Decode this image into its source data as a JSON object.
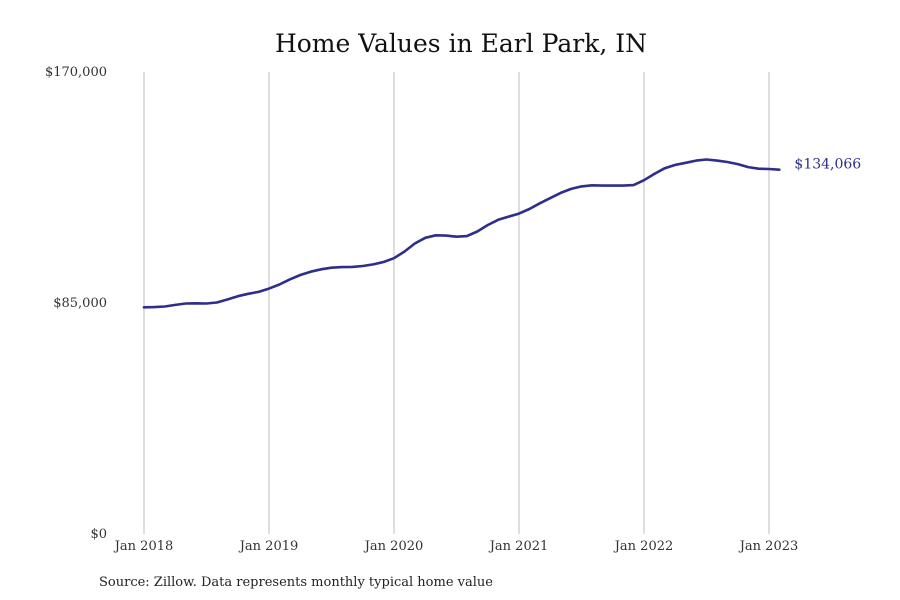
{
  "chart_data": {
    "type": "line",
    "title": "Home Values in Earl Park, IN",
    "xlabel": "",
    "ylabel": "",
    "y_ticks": [
      {
        "value": 0,
        "label": "$0"
      },
      {
        "value": 85000,
        "label": "$85,000"
      },
      {
        "value": 170000,
        "label": "$170,000"
      }
    ],
    "ylim": [
      0,
      170000
    ],
    "x_ticks": [
      {
        "value": "2018-01",
        "label": "Jan 2018"
      },
      {
        "value": "2019-01",
        "label": "Jan 2019"
      },
      {
        "value": "2020-01",
        "label": "Jan 2020"
      },
      {
        "value": "2021-01",
        "label": "Jan 2021"
      },
      {
        "value": "2022-01",
        "label": "Jan 2022"
      },
      {
        "value": "2023-01",
        "label": "Jan 2023"
      }
    ],
    "grid": "vertical",
    "line_color": "#2e2e8c",
    "end_label": "$134,066",
    "series": [
      {
        "x": [
          "2018-01",
          "2018-02",
          "2018-03",
          "2018-04",
          "2018-05",
          "2018-06",
          "2018-07",
          "2018-08",
          "2018-09",
          "2018-10",
          "2018-11",
          "2018-12",
          "2019-01",
          "2019-02",
          "2019-03",
          "2019-04",
          "2019-05",
          "2019-06",
          "2019-07",
          "2019-08",
          "2019-09",
          "2019-10",
          "2019-11",
          "2019-12",
          "2020-01",
          "2020-02",
          "2020-03",
          "2020-04",
          "2020-05",
          "2020-06",
          "2020-07",
          "2020-08",
          "2020-09",
          "2020-10",
          "2020-11",
          "2020-12",
          "2021-01",
          "2021-02",
          "2021-03",
          "2021-04",
          "2021-05",
          "2021-06",
          "2021-07",
          "2021-08",
          "2021-09",
          "2021-10",
          "2021-11",
          "2021-12",
          "2022-01",
          "2022-02",
          "2022-03",
          "2022-04",
          "2022-05",
          "2022-06",
          "2022-07",
          "2022-08",
          "2022-09",
          "2022-10",
          "2022-11",
          "2022-12",
          "2023-01",
          "2023-02"
        ],
        "values": [
          83400,
          83500,
          83700,
          84300,
          84800,
          84900,
          84800,
          85200,
          86300,
          87500,
          88400,
          89100,
          90300,
          91800,
          93700,
          95300,
          96500,
          97400,
          98000,
          98200,
          98300,
          98600,
          99200,
          100100,
          101500,
          103900,
          106900,
          109000,
          109900,
          109800,
          109400,
          109600,
          111300,
          113700,
          115600,
          116800,
          117900,
          119600,
          121700,
          123600,
          125500,
          127000,
          127900,
          128300,
          128200,
          128200,
          128200,
          128400,
          130200,
          132500,
          134600,
          135800,
          136600,
          137400,
          137800,
          137400,
          136900,
          136100,
          135000,
          134400,
          134300,
          134066
        ]
      }
    ]
  },
  "source_note": "Source: Zillow. Data represents monthly typical home value"
}
